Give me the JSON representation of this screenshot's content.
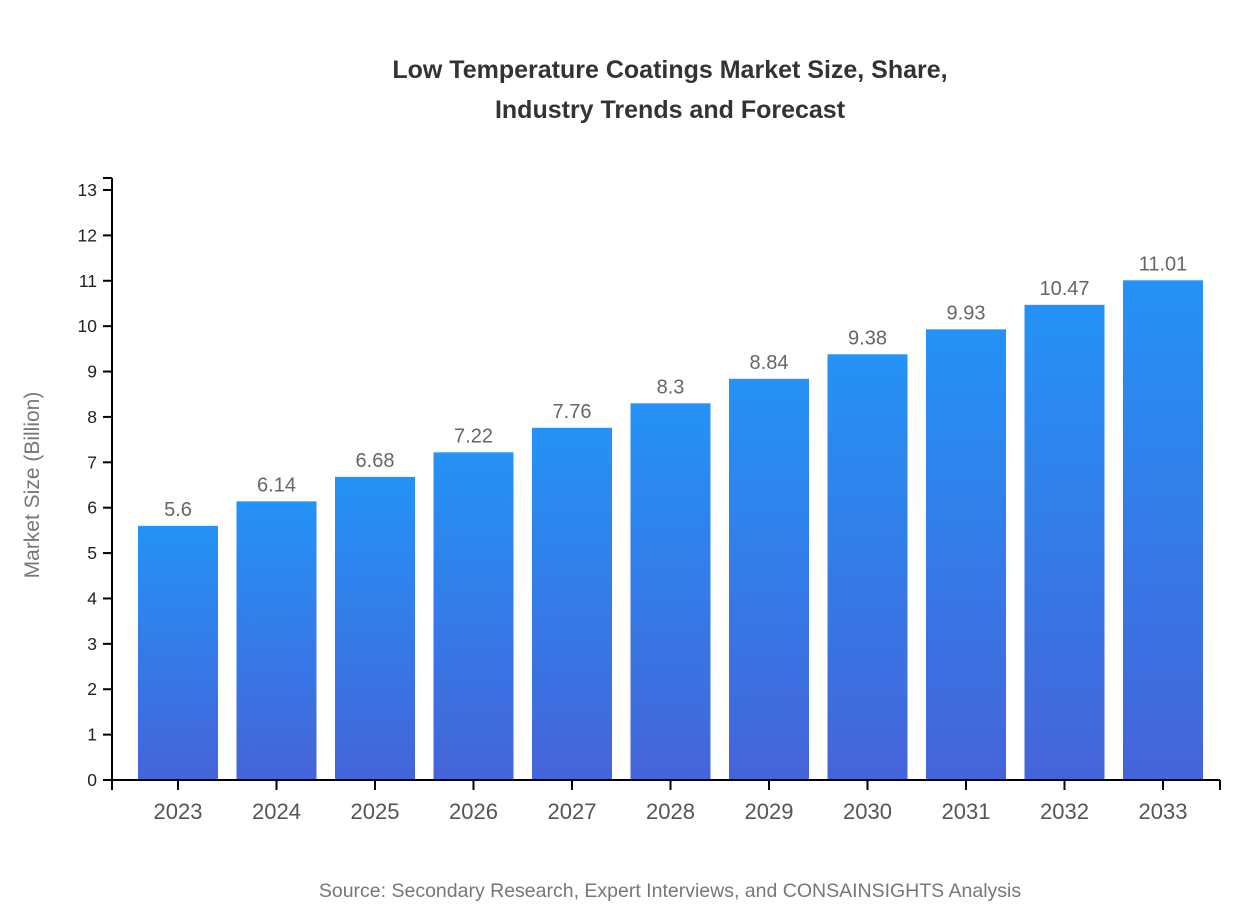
{
  "chart_data": {
    "type": "bar",
    "title": "Low Temperature Coatings Market Size, Share,\nIndustry Trends and Forecast",
    "categories": [
      "2023",
      "2024",
      "2025",
      "2026",
      "2027",
      "2028",
      "2029",
      "2030",
      "2031",
      "2032",
      "2033"
    ],
    "values": [
      5.6,
      6.14,
      6.68,
      7.22,
      7.76,
      8.3,
      8.84,
      9.38,
      9.93,
      10.47,
      11.01
    ],
    "value_labels": [
      "5.6",
      "6.14",
      "6.68",
      "7.22",
      "7.76",
      "8.3",
      "8.84",
      "9.38",
      "9.93",
      "10.47",
      "11.01"
    ],
    "xlabel": "",
    "ylabel": "Market Size (Billion)",
    "ylim": [
      0,
      13
    ],
    "yticks": [
      0,
      1,
      2,
      3,
      4,
      5,
      6,
      7,
      8,
      9,
      10,
      11,
      12,
      13
    ],
    "grid": false,
    "legend": "none",
    "source": "Source: Secondary Research, Expert Interviews, and CONSAINSIGHTS Analysis"
  },
  "colors": {
    "bar_gradient_top": "#2492f6",
    "bar_gradient_bottom": "#4564d9",
    "title_text": "#333333",
    "axis_line": "#000000",
    "ytick_label": "#222222",
    "xtick_label": "#555555",
    "value_label": "#666666",
    "ylabel_text": "#777777",
    "source_text": "#777777"
  }
}
